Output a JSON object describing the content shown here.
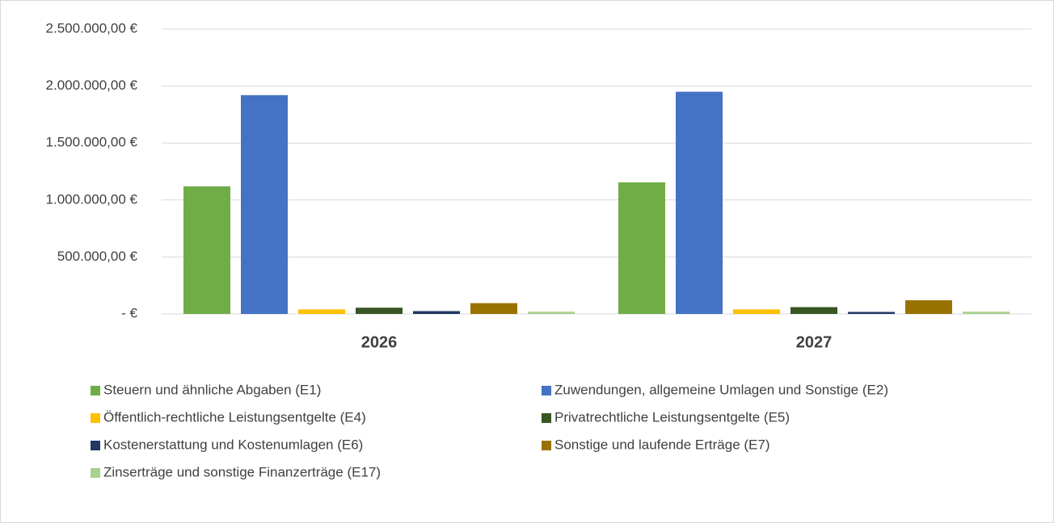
{
  "chart_data": {
    "type": "bar",
    "categories": [
      "2026",
      "2027"
    ],
    "series": [
      {
        "name": "Steuern und ähnliche Abgaben (E1)",
        "color": "#70ad47",
        "values": [
          1120000,
          1155000
        ]
      },
      {
        "name": "Zuwendungen, allgemeine Umlagen und Sonstige (E2)",
        "color": "#4472c4",
        "values": [
          1920000,
          1950000
        ]
      },
      {
        "name": "Öffentlich-rechtliche Leistungsentgelte (E4)",
        "color": "#ffc000",
        "values": [
          40000,
          40000
        ]
      },
      {
        "name": "Privatrechtliche Leistungsentgelte (E5)",
        "color": "#375623",
        "values": [
          55000,
          60000
        ]
      },
      {
        "name": "Kostenerstattung und Kostenumlagen (E6)",
        "color": "#203864",
        "values": [
          25000,
          18000
        ]
      },
      {
        "name": "Sonstige und laufende Erträge (E7)",
        "color": "#997300",
        "values": [
          95000,
          120000
        ]
      },
      {
        "name": "Zinserträge und sonstige Finanzerträge (E17)",
        "color": "#a9d18e",
        "values": [
          20000,
          20000
        ]
      }
    ],
    "ylim": [
      0,
      2500000
    ],
    "yticks": [
      {
        "value": 0,
        "label": "-  €"
      },
      {
        "value": 500000,
        "label": "500.000,00 €"
      },
      {
        "value": 1000000,
        "label": "1.000.000,00 €"
      },
      {
        "value": 1500000,
        "label": "1.500.000,00 €"
      },
      {
        "value": 2000000,
        "label": "2.000.000,00 €"
      },
      {
        "value": 2500000,
        "label": "2.500.000,00 €"
      }
    ],
    "grid": true
  }
}
